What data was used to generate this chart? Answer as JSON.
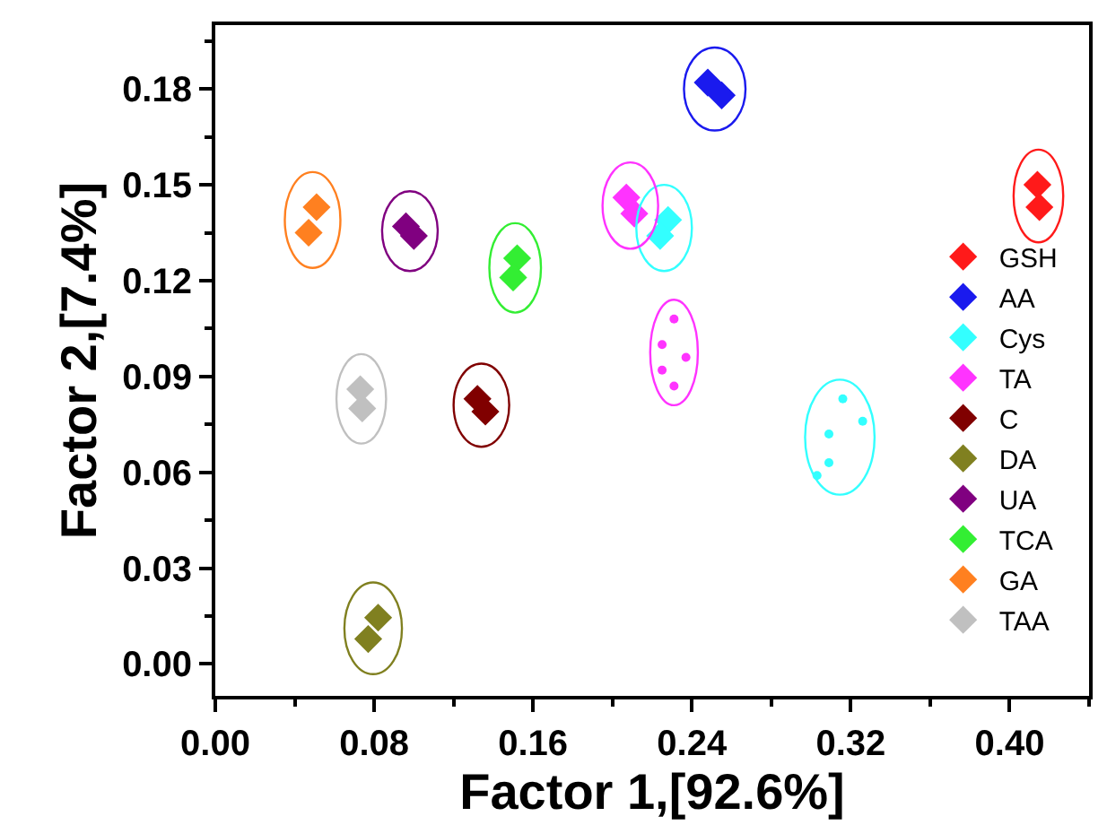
{
  "chart_data": {
    "type": "scatter",
    "xlabel": "Factor 1,[92.6%]",
    "ylabel": "Factor 2,[7.4%]",
    "marker": "diamond",
    "legend": "right",
    "xlim": [
      0,
      0.44
    ],
    "ylim": [
      -0.01,
      0.2
    ],
    "xticks": [
      {
        "value": 0,
        "label": "0.00"
      },
      {
        "value": 0.08,
        "label": "0.08"
      },
      {
        "value": 0.16,
        "label": "0.16"
      },
      {
        "value": 0.24,
        "label": "0.24"
      },
      {
        "value": 0.32,
        "label": "0.32"
      },
      {
        "value": 0.4,
        "label": "0.40"
      }
    ],
    "yticks": [
      {
        "value": 0,
        "label": "0.00"
      },
      {
        "value": 0.03,
        "label": "0.03"
      },
      {
        "value": 0.06,
        "label": "0.06"
      },
      {
        "value": 0.09,
        "label": "0.09"
      },
      {
        "value": 0.12,
        "label": "0.12"
      },
      {
        "value": 0.15,
        "label": "0.15"
      },
      {
        "value": 0.18,
        "label": "0.18"
      }
    ],
    "series": [
      {
        "name": "GSH",
        "color": "#ff1a1a",
        "x": [
          0.414,
          0.415
        ],
        "values": [
          0.15,
          0.143
        ]
      },
      {
        "name": "AA",
        "color": "#1a1aee",
        "x": [
          0.248,
          0.255
        ],
        "values": [
          0.182,
          0.178
        ]
      },
      {
        "name": "Cys",
        "color": "#33ffff",
        "x": [
          0.228,
          0.224
        ],
        "values": [
          0.139,
          0.134
        ]
      },
      {
        "name": "TA",
        "color": "#ff33ff",
        "x": [
          0.207,
          0.211
        ],
        "values": [
          0.146,
          0.141
        ]
      },
      {
        "name": "C",
        "color": "#800000",
        "x": [
          0.132,
          0.136
        ],
        "values": [
          0.083,
          0.079
        ]
      },
      {
        "name": "DA",
        "color": "#808020",
        "x": [
          0.082,
          0.077
        ],
        "values": [
          0.0145,
          0.0078
        ]
      },
      {
        "name": "UA",
        "color": "#800080",
        "x": [
          0.096,
          0.1
        ],
        "values": [
          0.137,
          0.134
        ]
      },
      {
        "name": "TCA",
        "color": "#33ee33",
        "x": [
          0.152,
          0.15
        ],
        "values": [
          0.127,
          0.121
        ]
      },
      {
        "name": "GA",
        "color": "#ff8020",
        "x": [
          0.051,
          0.047
        ],
        "values": [
          0.143,
          0.135
        ]
      },
      {
        "name": "TAA",
        "color": "#c0c0c0",
        "x": [
          0.073,
          0.074
        ],
        "values": [
          0.086,
          0.08
        ]
      },
      {
        "color": "#ff33ff",
        "marker": "circle",
        "x": [
          0.231,
          0.225,
          0.237,
          0.225,
          0.231
        ],
        "values": [
          0.108,
          0.1,
          0.096,
          0.092,
          0.087
        ]
      },
      {
        "color": "#33ffff",
        "marker": "circle",
        "x": [
          0.316,
          0.326,
          0.309,
          0.309,
          0.303
        ],
        "values": [
          0.083,
          0.076,
          0.072,
          0.063,
          0.059
        ]
      }
    ]
  }
}
